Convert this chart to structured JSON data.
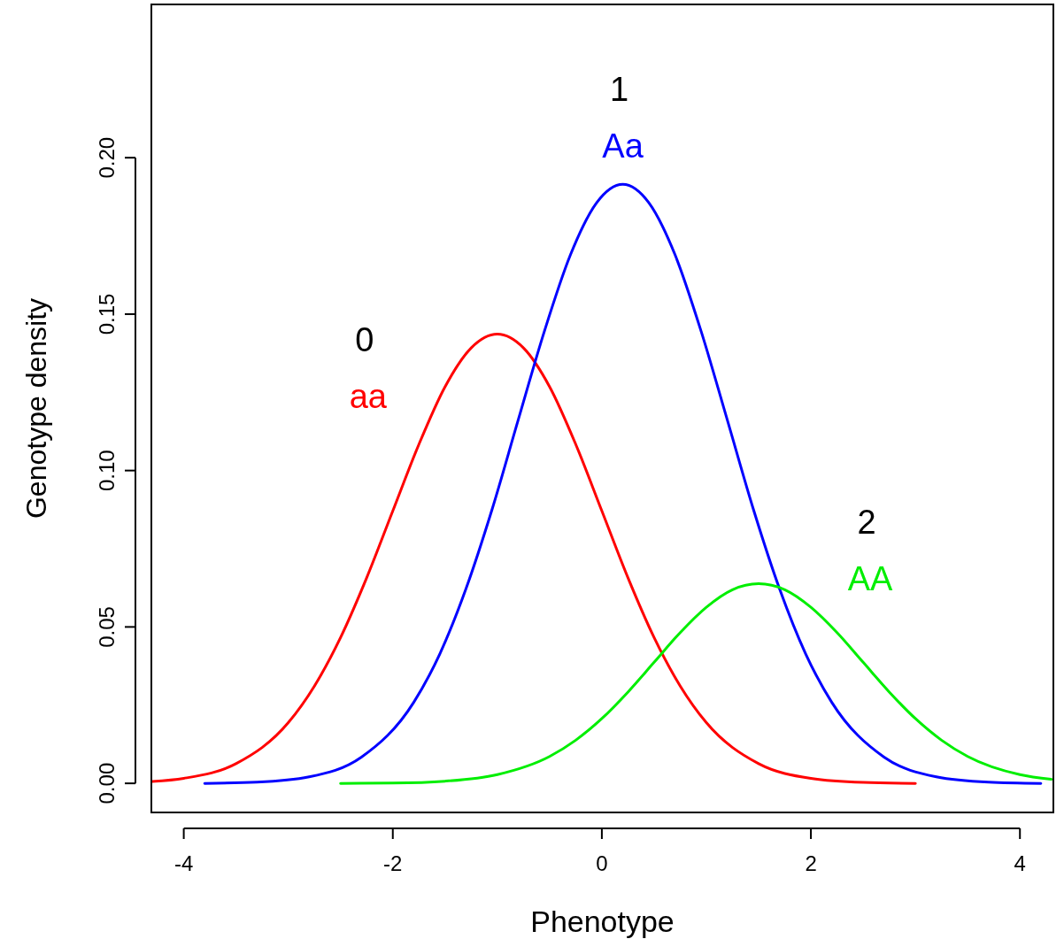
{
  "chart_data": {
    "type": "line",
    "xlabel": "Phenotype",
    "ylabel": "Genotype density",
    "xlim": [
      -4.31,
      4.32
    ],
    "ylim": [
      -0.0093,
      0.249
    ],
    "xticks": [
      -4,
      -2,
      0,
      2,
      4
    ],
    "yticks": [
      {
        "value": 0,
        "label": "0.00"
      },
      {
        "value": 0.05,
        "label": "0.05"
      },
      {
        "value": 0.1,
        "label": "0.10"
      },
      {
        "value": 0.15,
        "label": "0.15"
      },
      {
        "value": 0.2,
        "label": "0.20"
      }
    ],
    "grid": false,
    "marker": "none",
    "line_style": "solid",
    "annotations": [
      "0",
      "1",
      "2"
    ],
    "series": [
      {
        "name": "aa",
        "color": "#ff0000",
        "x": [
          -4.3,
          -4,
          -3.5,
          -3,
          -2.75,
          -2.5,
          -2.25,
          -2,
          -1.75,
          -1.5,
          -1.25,
          -1,
          -0.75,
          -0.5,
          -0.25,
          0,
          0.25,
          0.5,
          0.75,
          1,
          1.5,
          2,
          2.5,
          3
        ],
        "values": [
          0.0006,
          0.0016,
          0.0063,
          0.0194,
          0.0311,
          0.0466,
          0.0657,
          0.0871,
          0.1084,
          0.1268,
          0.1392,
          0.1436,
          0.1392,
          0.1268,
          0.1084,
          0.0871,
          0.0657,
          0.0466,
          0.0311,
          0.0194,
          0.0063,
          0.0016,
          0.0003,
          0
        ]
      },
      {
        "name": "Aa",
        "color": "#0000ff",
        "x": [
          -3.8,
          -3.3,
          -2.8,
          -2.3,
          -1.8,
          -1.55,
          -1.3,
          -1.05,
          -0.8,
          -0.55,
          -0.3,
          -0.05,
          0.2,
          0.45,
          0.7,
          0.95,
          1.2,
          1.45,
          1.7,
          1.95,
          2.2,
          2.7,
          3.2,
          3.7,
          4.2
        ],
        "values": [
          0,
          0.0004,
          0.0021,
          0.0084,
          0.0259,
          0.0414,
          0.0622,
          0.0876,
          0.1162,
          0.1445,
          0.169,
          0.1856,
          0.1915,
          0.1856,
          0.169,
          0.1445,
          0.1162,
          0.0876,
          0.0622,
          0.0414,
          0.0259,
          0.0084,
          0.0021,
          0.0004,
          0
        ]
      },
      {
        "name": "AA",
        "color": "#00ee00",
        "x": [
          -2.5,
          -2,
          -1.5,
          -1,
          -0.5,
          -0.25,
          0,
          0.25,
          0.5,
          0.75,
          1,
          1.25,
          1.5,
          1.75,
          2,
          2.25,
          2.5,
          2.75,
          3,
          3.25,
          3.5,
          4,
          4.3
        ],
        "values": [
          0,
          0.0001,
          0.0007,
          0.0028,
          0.0086,
          0.0138,
          0.0207,
          0.0292,
          0.0387,
          0.0482,
          0.0563,
          0.0619,
          0.0638,
          0.0619,
          0.0563,
          0.0482,
          0.0387,
          0.0292,
          0.0207,
          0.0138,
          0.0086,
          0.0028,
          0.0013
        ]
      }
    ]
  }
}
